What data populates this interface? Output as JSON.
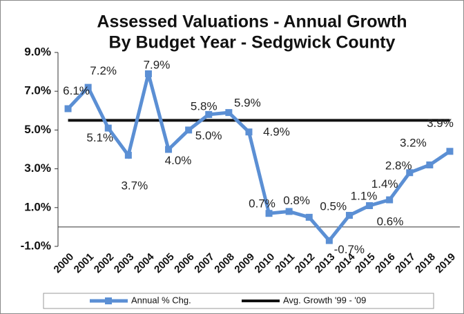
{
  "chart_data": {
    "type": "line",
    "title": "Assessed Valuations - Annual Growth",
    "subtitle": "By Budget Year - Sedgwick County",
    "categories": [
      "2000",
      "2001",
      "2002",
      "2003",
      "2004",
      "2005",
      "2006",
      "2007",
      "2008",
      "2009",
      "2010",
      "2011",
      "2012",
      "2013",
      "2014",
      "2015",
      "2016",
      "2017",
      "2018",
      "2019"
    ],
    "series": [
      {
        "name": "Annual % Chg.",
        "color": "#5b8fd4",
        "values": [
          6.1,
          7.2,
          5.1,
          3.7,
          7.9,
          4.0,
          5.0,
          5.8,
          5.9,
          4.9,
          0.7,
          0.8,
          0.5,
          -0.7,
          0.6,
          1.1,
          1.4,
          2.8,
          3.2,
          3.9
        ],
        "value_labels": [
          "6.1%",
          "7.2%",
          "5.1%",
          "3.7%",
          "7.9%",
          "4.0%",
          "5.0%",
          "5.8%",
          "5.9%",
          "4.9%",
          "0.7%",
          "0.8%",
          "0.5%",
          "-0.7%",
          "0.6%",
          "1.1%",
          "1.4%",
          "2.8%",
          "3.2%",
          "3.9%"
        ]
      },
      {
        "name": "Avg. Growth '99 - '09",
        "color": "#111111",
        "values": [
          5.5,
          5.5,
          5.5,
          5.5,
          5.5,
          5.5,
          5.5,
          5.5,
          5.5,
          5.5,
          5.5,
          5.5,
          5.5,
          5.5,
          5.5,
          5.5,
          5.5,
          5.5,
          5.5,
          5.5
        ]
      }
    ],
    "ylim": [
      -1,
      9
    ],
    "yticks": [
      {
        "value": -1,
        "label": "-1.0%"
      },
      {
        "value": 1,
        "label": "1.0%"
      },
      {
        "value": 3,
        "label": "3.0%"
      },
      {
        "value": 5,
        "label": "5.0%"
      },
      {
        "value": 7,
        "label": "7.0%"
      },
      {
        "value": 9,
        "label": "9.0%"
      }
    ],
    "legend": "bottom"
  }
}
